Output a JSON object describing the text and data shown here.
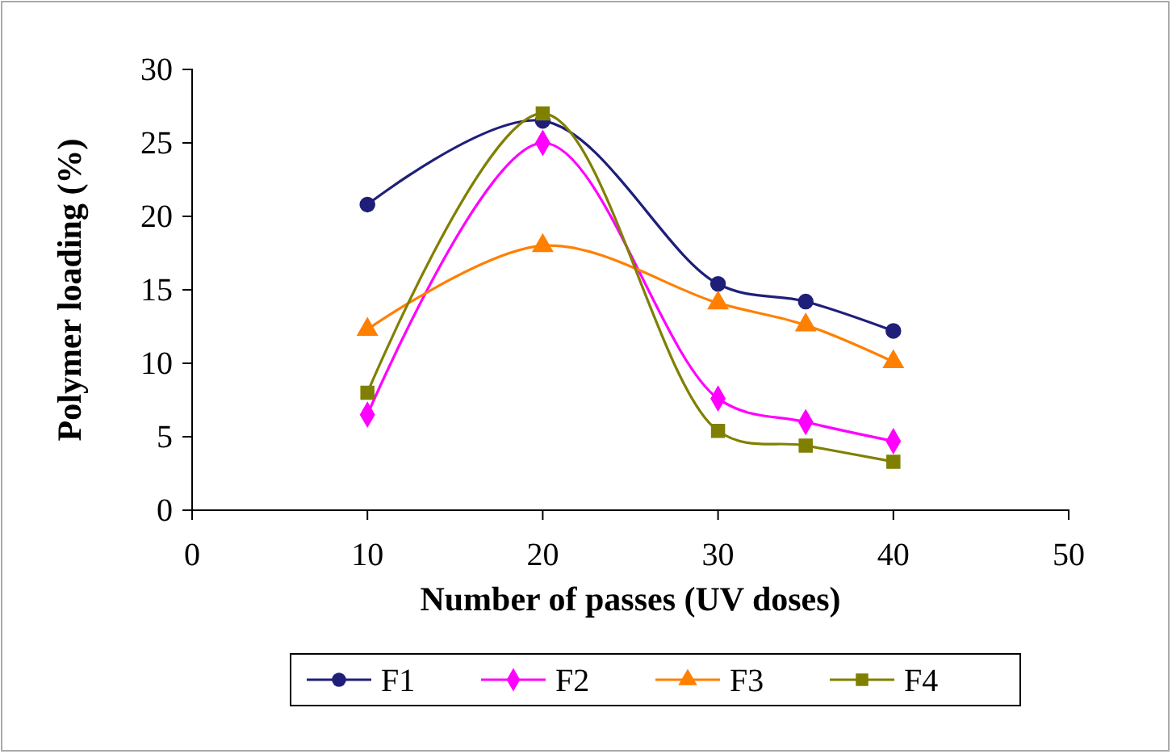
{
  "chart_data": {
    "type": "line",
    "xlabel": "Number of passes (UV doses)",
    "ylabel": "Polymer loading (%)",
    "x": [
      10,
      20,
      30,
      35,
      40
    ],
    "xlim": [
      0,
      50
    ],
    "xticks": [
      0,
      10,
      20,
      30,
      40,
      50
    ],
    "ylim": [
      0,
      30
    ],
    "yticks": [
      0,
      5,
      10,
      15,
      20,
      25,
      30
    ],
    "legend": "bottom",
    "grid": false,
    "series": [
      {
        "name": "F1",
        "color": "#1f1f7a",
        "marker": "circle",
        "values": [
          20.8,
          26.5,
          15.4,
          14.2,
          12.2
        ]
      },
      {
        "name": "F2",
        "color": "#ff00ff",
        "marker": "diamond",
        "values": [
          6.5,
          25,
          7.6,
          6,
          4.7
        ]
      },
      {
        "name": "F3",
        "color": "#ff8000",
        "marker": "triangle",
        "values": [
          12.3,
          18,
          14.1,
          12.6,
          10.1
        ]
      },
      {
        "name": "F4",
        "color": "#808000",
        "marker": "square",
        "values": [
          8,
          27,
          5.4,
          4.4,
          3.3
        ]
      }
    ]
  }
}
